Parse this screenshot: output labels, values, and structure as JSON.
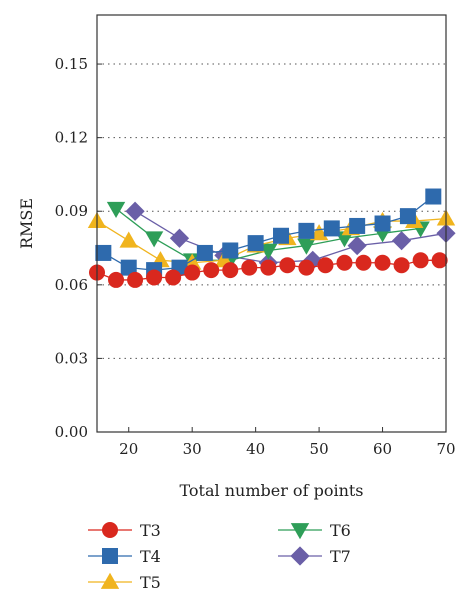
{
  "chart_data": {
    "type": "line",
    "title": "",
    "xlabel": "Total number of points",
    "ylabel": "RMSE",
    "xlim": [
      15,
      70
    ],
    "ylim": [
      0,
      0.17
    ],
    "xticks": [
      20,
      30,
      40,
      50,
      60,
      70
    ],
    "xtick_labels": [
      "20",
      "30",
      "40",
      "50",
      "60",
      "70"
    ],
    "yticks": [
      0,
      0.03,
      0.06,
      0.09,
      0.12,
      0.15
    ],
    "ytick_labels": [
      "0.00",
      "0.03",
      "0.06",
      "0.09",
      "0.12",
      "0.15"
    ],
    "grid": "horizontal dotted",
    "legend_position": "bottom",
    "series": [
      {
        "name": "T3",
        "color": "#d9281e",
        "marker": "circle",
        "x": [
          15,
          18,
          21,
          24,
          27,
          30,
          33,
          36,
          39,
          42,
          45,
          48,
          51,
          54,
          57,
          60,
          63,
          66,
          69
        ],
        "y": [
          0.065,
          0.062,
          0.062,
          0.063,
          0.063,
          0.065,
          0.066,
          0.066,
          0.067,
          0.067,
          0.068,
          0.067,
          0.068,
          0.069,
          0.069,
          0.069,
          0.068,
          0.07,
          0.07
        ]
      },
      {
        "name": "T4",
        "color": "#2e6aad",
        "marker": "square",
        "x": [
          16,
          20,
          24,
          28,
          32,
          36,
          40,
          44,
          48,
          52,
          56,
          60,
          64,
          68
        ],
        "y": [
          0.073,
          0.067,
          0.066,
          0.067,
          0.073,
          0.074,
          0.077,
          0.08,
          0.082,
          0.083,
          0.084,
          0.085,
          0.088,
          0.096
        ]
      },
      {
        "name": "T5",
        "color": "#f0b41e",
        "marker": "triangle-up",
        "x": [
          15,
          20,
          25,
          30,
          35,
          40,
          45,
          50,
          55,
          60,
          65,
          70
        ],
        "y": [
          0.086,
          0.078,
          0.07,
          0.069,
          0.07,
          0.076,
          0.079,
          0.081,
          0.083,
          0.086,
          0.086,
          0.087
        ]
      },
      {
        "name": "T6",
        "color": "#2e9e58",
        "marker": "triangle-down",
        "x": [
          18,
          24,
          30,
          36,
          42,
          48,
          54,
          60,
          66
        ],
        "y": [
          0.091,
          0.079,
          0.07,
          0.07,
          0.074,
          0.076,
          0.079,
          0.081,
          0.083
        ]
      },
      {
        "name": "T7",
        "color": "#6a5fa7",
        "marker": "diamond",
        "x": [
          21,
          28,
          35,
          42,
          49,
          56,
          63,
          70
        ],
        "y": [
          0.09,
          0.079,
          0.072,
          0.069,
          0.07,
          0.076,
          0.078,
          0.081
        ]
      }
    ]
  }
}
